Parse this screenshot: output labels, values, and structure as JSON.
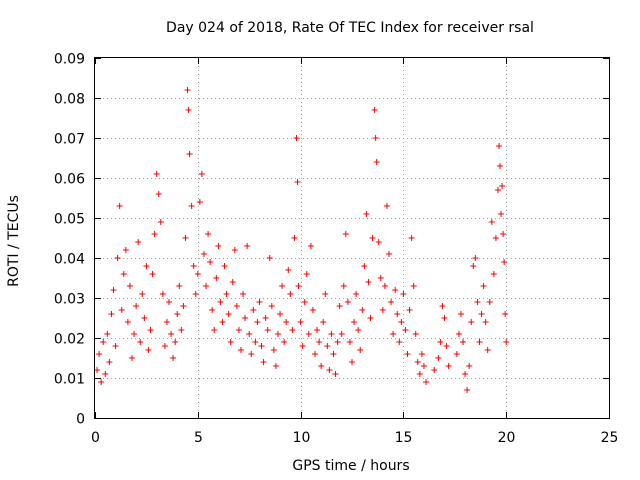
{
  "chart_data": {
    "type": "scatter",
    "title": "Day 024 of 2018, Rate Of TEC Index for receiver rsal",
    "xlabel": "GPS time / hours",
    "ylabel": "ROTI / TECUs",
    "xlim": [
      0,
      25
    ],
    "ylim": [
      0,
      0.09
    ],
    "x_ticks": [
      0,
      5,
      10,
      15,
      20,
      25
    ],
    "x_tick_labels": [
      "0",
      "5",
      "10",
      "15",
      "20",
      "25"
    ],
    "y_ticks": [
      0,
      0.01,
      0.02,
      0.03,
      0.04,
      0.05,
      0.06,
      0.07,
      0.08,
      0.09
    ],
    "y_tick_labels": [
      "0",
      "0.01",
      "0.02",
      "0.03",
      "0.04",
      "0.05",
      "0.06",
      "0.07",
      "0.08",
      "0.09"
    ],
    "grid": true,
    "marker": "+",
    "series": [
      {
        "name": "ROTI",
        "color": "#ff0000",
        "points": [
          [
            0.1,
            0.012
          ],
          [
            0.2,
            0.016
          ],
          [
            0.3,
            0.009
          ],
          [
            0.4,
            0.019
          ],
          [
            0.5,
            0.011
          ],
          [
            0.6,
            0.021
          ],
          [
            0.7,
            0.014
          ],
          [
            0.8,
            0.026
          ],
          [
            0.9,
            0.032
          ],
          [
            1.0,
            0.018
          ],
          [
            1.1,
            0.04
          ],
          [
            1.2,
            0.053
          ],
          [
            1.3,
            0.027
          ],
          [
            1.4,
            0.036
          ],
          [
            1.5,
            0.042
          ],
          [
            1.6,
            0.024
          ],
          [
            1.7,
            0.033
          ],
          [
            1.8,
            0.015
          ],
          [
            1.9,
            0.021
          ],
          [
            2.0,
            0.028
          ],
          [
            2.1,
            0.044
          ],
          [
            2.2,
            0.019
          ],
          [
            2.3,
            0.031
          ],
          [
            2.4,
            0.025
          ],
          [
            2.5,
            0.038
          ],
          [
            2.6,
            0.017
          ],
          [
            2.7,
            0.022
          ],
          [
            2.8,
            0.036
          ],
          [
            2.9,
            0.046
          ],
          [
            3.0,
            0.061
          ],
          [
            3.1,
            0.056
          ],
          [
            3.2,
            0.049
          ],
          [
            3.3,
            0.031
          ],
          [
            3.4,
            0.018
          ],
          [
            3.5,
            0.024
          ],
          [
            3.6,
            0.029
          ],
          [
            3.7,
            0.021
          ],
          [
            3.8,
            0.015
          ],
          [
            3.9,
            0.019
          ],
          [
            4.0,
            0.026
          ],
          [
            4.1,
            0.033
          ],
          [
            4.2,
            0.022
          ],
          [
            4.3,
            0.028
          ],
          [
            4.4,
            0.045
          ],
          [
            4.5,
            0.082
          ],
          [
            4.55,
            0.077
          ],
          [
            4.6,
            0.066
          ],
          [
            4.7,
            0.053
          ],
          [
            4.8,
            0.038
          ],
          [
            4.9,
            0.031
          ],
          [
            5.0,
            0.036
          ],
          [
            5.1,
            0.054
          ],
          [
            5.2,
            0.061
          ],
          [
            5.3,
            0.041
          ],
          [
            5.4,
            0.033
          ],
          [
            5.5,
            0.046
          ],
          [
            5.6,
            0.039
          ],
          [
            5.7,
            0.027
          ],
          [
            5.8,
            0.022
          ],
          [
            5.9,
            0.035
          ],
          [
            6.0,
            0.043
          ],
          [
            6.1,
            0.029
          ],
          [
            6.2,
            0.024
          ],
          [
            6.3,
            0.038
          ],
          [
            6.4,
            0.031
          ],
          [
            6.5,
            0.026
          ],
          [
            6.6,
            0.019
          ],
          [
            6.7,
            0.034
          ],
          [
            6.8,
            0.042
          ],
          [
            6.9,
            0.028
          ],
          [
            7.0,
            0.022
          ],
          [
            7.1,
            0.017
          ],
          [
            7.2,
            0.031
          ],
          [
            7.3,
            0.025
          ],
          [
            7.4,
            0.043
          ],
          [
            7.5,
            0.021
          ],
          [
            7.6,
            0.016
          ],
          [
            7.7,
            0.027
          ],
          [
            7.8,
            0.019
          ],
          [
            7.9,
            0.024
          ],
          [
            8.0,
            0.029
          ],
          [
            8.1,
            0.018
          ],
          [
            8.2,
            0.014
          ],
          [
            8.3,
            0.025
          ],
          [
            8.4,
            0.022
          ],
          [
            8.5,
            0.04
          ],
          [
            8.6,
            0.028
          ],
          [
            8.7,
            0.017
          ],
          [
            8.8,
            0.013
          ],
          [
            8.9,
            0.021
          ],
          [
            9.0,
            0.026
          ],
          [
            9.1,
            0.033
          ],
          [
            9.2,
            0.019
          ],
          [
            9.3,
            0.024
          ],
          [
            9.4,
            0.037
          ],
          [
            9.5,
            0.031
          ],
          [
            9.6,
            0.022
          ],
          [
            9.7,
            0.045
          ],
          [
            9.8,
            0.07
          ],
          [
            9.85,
            0.059
          ],
          [
            9.9,
            0.033
          ],
          [
            10.0,
            0.024
          ],
          [
            10.1,
            0.018
          ],
          [
            10.2,
            0.029
          ],
          [
            10.3,
            0.036
          ],
          [
            10.4,
            0.021
          ],
          [
            10.5,
            0.043
          ],
          [
            10.6,
            0.027
          ],
          [
            10.7,
            0.016
          ],
          [
            10.8,
            0.022
          ],
          [
            10.9,
            0.019
          ],
          [
            11.0,
            0.013
          ],
          [
            11.1,
            0.024
          ],
          [
            11.2,
            0.031
          ],
          [
            11.3,
            0.018
          ],
          [
            11.4,
            0.012
          ],
          [
            11.5,
            0.021
          ],
          [
            11.6,
            0.016
          ],
          [
            11.7,
            0.011
          ],
          [
            11.8,
            0.019
          ],
          [
            11.9,
            0.028
          ],
          [
            12.0,
            0.021
          ],
          [
            12.1,
            0.033
          ],
          [
            12.2,
            0.046
          ],
          [
            12.3,
            0.029
          ],
          [
            12.4,
            0.019
          ],
          [
            12.5,
            0.014
          ],
          [
            12.6,
            0.024
          ],
          [
            12.7,
            0.031
          ],
          [
            12.8,
            0.022
          ],
          [
            12.9,
            0.017
          ],
          [
            13.0,
            0.027
          ],
          [
            13.1,
            0.038
          ],
          [
            13.2,
            0.051
          ],
          [
            13.3,
            0.034
          ],
          [
            13.4,
            0.025
          ],
          [
            13.5,
            0.045
          ],
          [
            13.6,
            0.077
          ],
          [
            13.65,
            0.07
          ],
          [
            13.7,
            0.064
          ],
          [
            13.8,
            0.044
          ],
          [
            13.9,
            0.035
          ],
          [
            14.0,
            0.027
          ],
          [
            14.1,
            0.033
          ],
          [
            14.2,
            0.053
          ],
          [
            14.3,
            0.041
          ],
          [
            14.4,
            0.029
          ],
          [
            14.5,
            0.021
          ],
          [
            14.6,
            0.032
          ],
          [
            14.7,
            0.026
          ],
          [
            14.8,
            0.019
          ],
          [
            14.9,
            0.024
          ],
          [
            15.0,
            0.031
          ],
          [
            15.1,
            0.022
          ],
          [
            15.2,
            0.016
          ],
          [
            15.3,
            0.027
          ],
          [
            15.4,
            0.045
          ],
          [
            15.5,
            0.033
          ],
          [
            15.6,
            0.021
          ],
          [
            15.7,
            0.014
          ],
          [
            15.8,
            0.011
          ],
          [
            15.9,
            0.016
          ],
          [
            16.0,
            0.013
          ],
          [
            16.1,
            0.009
          ],
          [
            16.5,
            0.012
          ],
          [
            16.7,
            0.015
          ],
          [
            16.8,
            0.019
          ],
          [
            16.9,
            0.028
          ],
          [
            17.0,
            0.025
          ],
          [
            17.1,
            0.018
          ],
          [
            17.2,
            0.013
          ],
          [
            17.6,
            0.016
          ],
          [
            17.7,
            0.021
          ],
          [
            17.8,
            0.026
          ],
          [
            17.9,
            0.019
          ],
          [
            18.0,
            0.011
          ],
          [
            18.1,
            0.007
          ],
          [
            18.2,
            0.013
          ],
          [
            18.3,
            0.024
          ],
          [
            18.4,
            0.038
          ],
          [
            18.5,
            0.04
          ],
          [
            18.6,
            0.029
          ],
          [
            18.7,
            0.019
          ],
          [
            18.8,
            0.026
          ],
          [
            18.9,
            0.033
          ],
          [
            19.0,
            0.024
          ],
          [
            19.1,
            0.017
          ],
          [
            19.2,
            0.029
          ],
          [
            19.3,
            0.049
          ],
          [
            19.4,
            0.036
          ],
          [
            19.5,
            0.045
          ],
          [
            19.6,
            0.057
          ],
          [
            19.65,
            0.068
          ],
          [
            19.7,
            0.063
          ],
          [
            19.75,
            0.051
          ],
          [
            19.8,
            0.058
          ],
          [
            19.85,
            0.046
          ],
          [
            19.9,
            0.039
          ],
          [
            19.95,
            0.026
          ],
          [
            20.0,
            0.019
          ]
        ]
      }
    ]
  }
}
